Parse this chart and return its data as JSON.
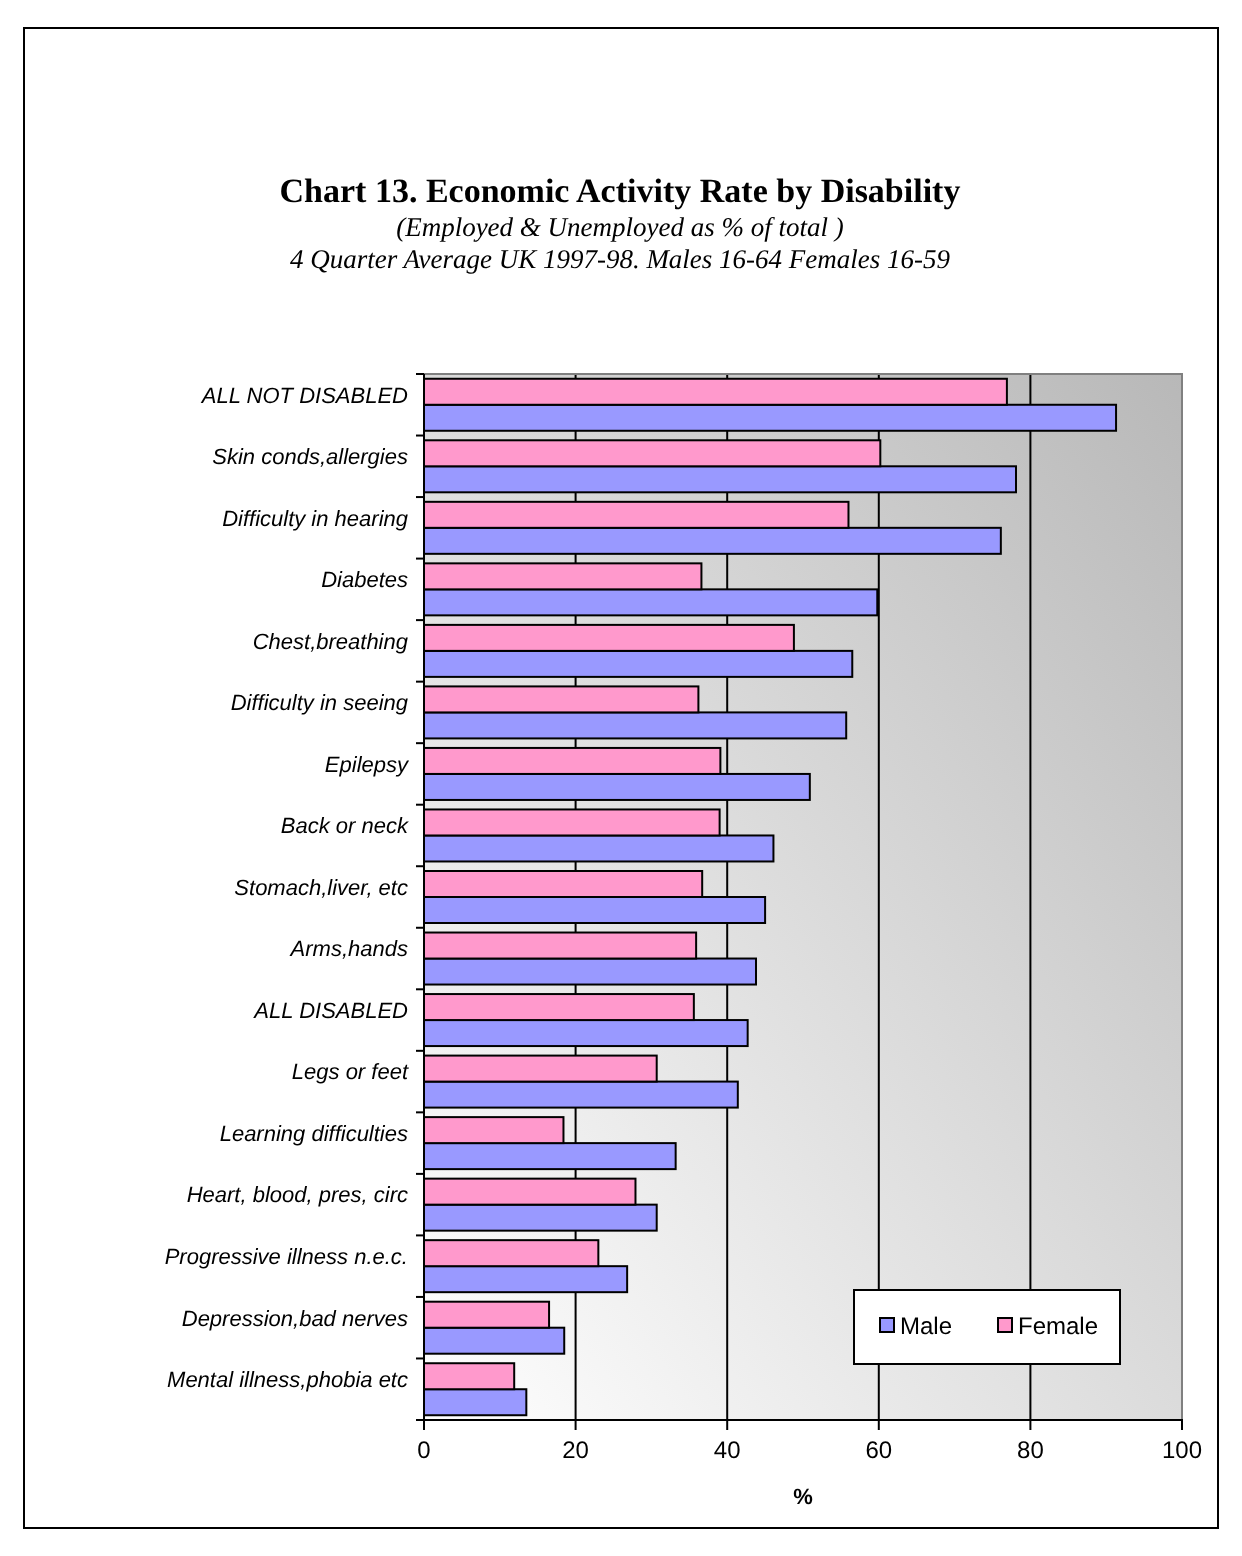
{
  "chart_data": {
    "type": "bar",
    "orientation": "horizontal",
    "title": "Chart 13. Economic Activity Rate by Disability",
    "subtitle": "(Employed & Unemployed  as % of  total )\n4 Quarter Average UK 1997-98. Males 16-64 Females 16-59",
    "xlabel": "%",
    "categories": [
      "ALL NOT DISABLED",
      "Skin conds,allergies",
      "Difficulty in hearing",
      "Diabetes",
      "Chest,breathing",
      "Difficulty in seeing",
      "Epilepsy",
      "Back or neck",
      "Stomach,liver, etc",
      "Arms,hands",
      "ALL DISABLED",
      "Legs or feet",
      "Learning difficulties",
      "Heart, blood, pres, circ",
      "Progressive illness n.e.c.",
      "Depression,bad nerves",
      "Mental illness,phobia etc"
    ],
    "series": [
      {
        "name": "Male",
        "color": "#9999ff",
        "values": [
          91.3,
          78.1,
          76.1,
          59.8,
          56.5,
          55.7,
          50.9,
          46.1,
          45.0,
          43.8,
          42.7,
          41.4,
          33.2,
          30.7,
          26.8,
          18.5,
          13.5
        ]
      },
      {
        "name": "Female",
        "color": "#ff99cc",
        "values": [
          76.9,
          60.2,
          56.0,
          36.6,
          48.8,
          36.2,
          39.1,
          39.0,
          36.7,
          35.9,
          35.6,
          30.7,
          18.4,
          27.9,
          23.0,
          16.5,
          11.9
        ]
      }
    ],
    "xlim": [
      0,
      100
    ],
    "xticks": [
      0,
      20,
      40,
      60,
      80,
      100
    ],
    "grid": "x",
    "legend": "bottom right"
  }
}
